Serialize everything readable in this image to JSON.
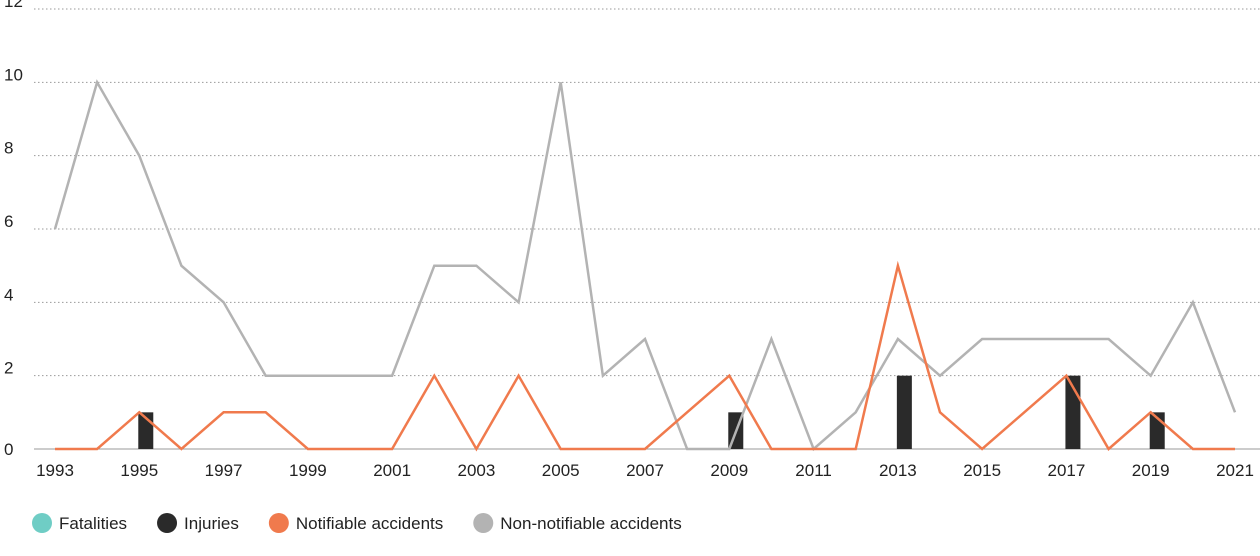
{
  "chart_data": {
    "type": "line",
    "x": [
      1993,
      1994,
      1995,
      1996,
      1997,
      1998,
      1999,
      2000,
      2001,
      2002,
      2003,
      2004,
      2005,
      2006,
      2007,
      2008,
      2009,
      2010,
      2011,
      2012,
      2013,
      2014,
      2015,
      2016,
      2017,
      2018,
      2019,
      2020,
      2021
    ],
    "x_tick_labels": [
      "1993",
      "1995",
      "1997",
      "1999",
      "2001",
      "2003",
      "2005",
      "2007",
      "2009",
      "2011",
      "2013",
      "2015",
      "2017",
      "2019",
      "2021"
    ],
    "x_ticks": [
      1993,
      1995,
      1997,
      1999,
      2001,
      2003,
      2005,
      2007,
      2009,
      2011,
      2013,
      2015,
      2017,
      2019,
      2021
    ],
    "y_ticks": [
      0,
      2,
      4,
      6,
      8,
      10,
      12
    ],
    "y_tick_labels": [
      "0",
      "2",
      "4",
      "6",
      "8",
      "10",
      "12"
    ],
    "ylim": [
      0,
      12
    ],
    "xlim": [
      1993,
      2021
    ],
    "grid": "horizontal-dotted",
    "legend_position": "bottom-left",
    "series": [
      {
        "name": "Fatalities",
        "kind": "bar",
        "color": "#6fcdc5",
        "values": [
          0,
          0,
          0,
          0,
          0,
          0,
          0,
          0,
          0,
          0,
          0,
          0,
          0,
          0,
          0,
          0,
          0,
          0,
          0,
          0,
          0,
          0,
          0,
          0,
          0,
          0,
          0,
          0,
          0
        ]
      },
      {
        "name": "Injuries",
        "kind": "bar",
        "color": "#2a2a2a",
        "values": [
          0,
          0,
          1,
          0,
          0,
          0,
          0,
          0,
          0,
          0,
          0,
          0,
          0,
          0,
          0,
          0,
          1,
          0,
          0,
          0,
          2,
          0,
          0,
          0,
          2,
          0,
          1,
          0,
          0
        ]
      },
      {
        "name": "Notifiable accidents",
        "kind": "line",
        "color": "#f07a4d",
        "values": [
          0,
          0,
          1,
          0,
          1,
          1,
          0,
          0,
          0,
          2,
          0,
          2,
          0,
          0,
          0,
          1,
          2,
          0,
          0,
          0,
          5,
          1,
          0,
          1,
          2,
          0,
          1,
          0,
          0
        ]
      },
      {
        "name": "Non-notifiable accidents",
        "kind": "line",
        "color": "#b3b3b3",
        "values": [
          6,
          10,
          8,
          5,
          4,
          2,
          2,
          2,
          2,
          5,
          5,
          4,
          10,
          2,
          3,
          0,
          0,
          3,
          0,
          1,
          3,
          2,
          3,
          3,
          3,
          3,
          2,
          4,
          1
        ]
      }
    ]
  }
}
